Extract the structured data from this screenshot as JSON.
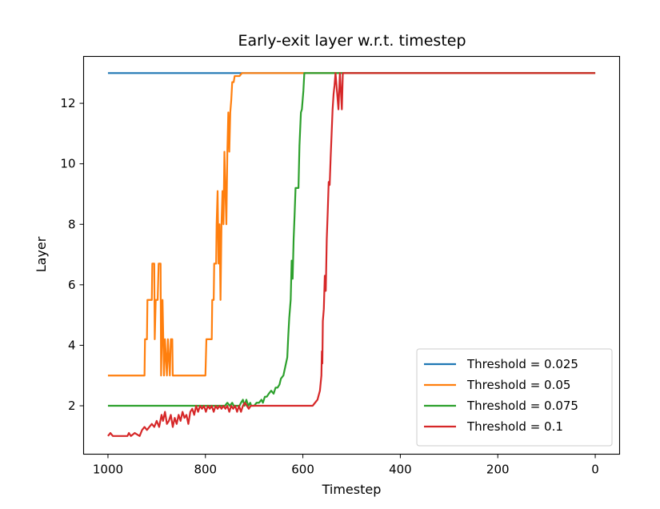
{
  "chart_data": {
    "type": "line",
    "title": "Early-exit layer w.r.t. timestep",
    "xlabel": "Timestep",
    "ylabel": "Layer",
    "xlim": [
      1050,
      -50
    ],
    "ylim": [
      0.4,
      13.55
    ],
    "x_inverted": true,
    "xticks": [
      1000,
      800,
      600,
      400,
      200,
      0
    ],
    "yticks": [
      2,
      4,
      6,
      8,
      10,
      12
    ],
    "grid": false,
    "legend_position": "lower-right",
    "series": [
      {
        "name": "Threshold = 0.025",
        "color": "#1f77b4",
        "points": [
          [
            1000,
            13
          ],
          [
            0,
            13
          ]
        ]
      },
      {
        "name": "Threshold = 0.05",
        "color": "#ff7f0e",
        "points": [
          [
            1000,
            3
          ],
          [
            925,
            3
          ],
          [
            924,
            4.2
          ],
          [
            920,
            4.2
          ],
          [
            919,
            5.5
          ],
          [
            910,
            5.5
          ],
          [
            909,
            6.7
          ],
          [
            905,
            6.7
          ],
          [
            904,
            4.2
          ],
          [
            902,
            5.5
          ],
          [
            898,
            5.5
          ],
          [
            896,
            6.7
          ],
          [
            892,
            6.7
          ],
          [
            891,
            3
          ],
          [
            888,
            5.5
          ],
          [
            885,
            3
          ],
          [
            883,
            4.2
          ],
          [
            879,
            3
          ],
          [
            877,
            4.2
          ],
          [
            873,
            3
          ],
          [
            871,
            4.2
          ],
          [
            868,
            4.2
          ],
          [
            867,
            3
          ],
          [
            800,
            3
          ],
          [
            798,
            4.2
          ],
          [
            787,
            4.2
          ],
          [
            786,
            5.5
          ],
          [
            783,
            5.5
          ],
          [
            782,
            6.7
          ],
          [
            778,
            6.7
          ],
          [
            777,
            8
          ],
          [
            775,
            9.1
          ],
          [
            773,
            6.7
          ],
          [
            771,
            8
          ],
          [
            769,
            5.5
          ],
          [
            767,
            8
          ],
          [
            765,
            9.1
          ],
          [
            763,
            8
          ],
          [
            761,
            10.4
          ],
          [
            759,
            9.1
          ],
          [
            757,
            8
          ],
          [
            755,
            10.4
          ],
          [
            753,
            11.7
          ],
          [
            751,
            10.4
          ],
          [
            749,
            11.7
          ],
          [
            747,
            12.1
          ],
          [
            745,
            12.7
          ],
          [
            742,
            12.7
          ],
          [
            740,
            12.9
          ],
          [
            730,
            12.9
          ],
          [
            725,
            13
          ],
          [
            0,
            13
          ]
        ]
      },
      {
        "name": "Threshold = 0.075",
        "color": "#2ca02c",
        "points": [
          [
            1000,
            2
          ],
          [
            760,
            2
          ],
          [
            755,
            2.1
          ],
          [
            750,
            2
          ],
          [
            745,
            2.1
          ],
          [
            742,
            2
          ],
          [
            730,
            2
          ],
          [
            727,
            2.1
          ],
          [
            723,
            2.2
          ],
          [
            720,
            2
          ],
          [
            716,
            2.2
          ],
          [
            712,
            2
          ],
          [
            708,
            2.1
          ],
          [
            706,
            2
          ],
          [
            700,
            2
          ],
          [
            695,
            2.1
          ],
          [
            690,
            2.1
          ],
          [
            685,
            2.2
          ],
          [
            682,
            2.1
          ],
          [
            678,
            2.3
          ],
          [
            674,
            2.3
          ],
          [
            670,
            2.4
          ],
          [
            665,
            2.5
          ],
          [
            660,
            2.4
          ],
          [
            656,
            2.6
          ],
          [
            652,
            2.6
          ],
          [
            648,
            2.7
          ],
          [
            645,
            2.9
          ],
          [
            640,
            3
          ],
          [
            636,
            3.3
          ],
          [
            632,
            3.6
          ],
          [
            630,
            4.3
          ],
          [
            628,
            4.9
          ],
          [
            625,
            5.5
          ],
          [
            623,
            6.8
          ],
          [
            621,
            6.2
          ],
          [
            619,
            7.5
          ],
          [
            617,
            8.3
          ],
          [
            615,
            9.2
          ],
          [
            609,
            9.2
          ],
          [
            607,
            10.6
          ],
          [
            604,
            11.7
          ],
          [
            602,
            11.8
          ],
          [
            599,
            12.4
          ],
          [
            597,
            13
          ],
          [
            0,
            13
          ]
        ]
      },
      {
        "name": "Threshold = 0.1",
        "color": "#d62728",
        "points": [
          [
            1000,
            1
          ],
          [
            995,
            1.1
          ],
          [
            990,
            1
          ],
          [
            960,
            1
          ],
          [
            957,
            1.1
          ],
          [
            953,
            1
          ],
          [
            945,
            1.1
          ],
          [
            935,
            1
          ],
          [
            930,
            1.2
          ],
          [
            925,
            1.3
          ],
          [
            920,
            1.2
          ],
          [
            915,
            1.3
          ],
          [
            910,
            1.4
          ],
          [
            905,
            1.3
          ],
          [
            900,
            1.5
          ],
          [
            895,
            1.3
          ],
          [
            890,
            1.7
          ],
          [
            887,
            1.5
          ],
          [
            883,
            1.8
          ],
          [
            879,
            1.4
          ],
          [
            875,
            1.5
          ],
          [
            871,
            1.7
          ],
          [
            867,
            1.3
          ],
          [
            863,
            1.6
          ],
          [
            859,
            1.4
          ],
          [
            855,
            1.7
          ],
          [
            851,
            1.5
          ],
          [
            847,
            1.8
          ],
          [
            843,
            1.6
          ],
          [
            839,
            1.7
          ],
          [
            835,
            1.4
          ],
          [
            831,
            1.8
          ],
          [
            827,
            1.9
          ],
          [
            823,
            1.7
          ],
          [
            819,
            2
          ],
          [
            815,
            1.8
          ],
          [
            811,
            2
          ],
          [
            807,
            1.9
          ],
          [
            803,
            2
          ],
          [
            799,
            1.8
          ],
          [
            795,
            2
          ],
          [
            791,
            1.9
          ],
          [
            787,
            2
          ],
          [
            783,
            1.8
          ],
          [
            779,
            2
          ],
          [
            775,
            1.9
          ],
          [
            771,
            2
          ],
          [
            767,
            1.9
          ],
          [
            763,
            2
          ],
          [
            759,
            1.9
          ],
          [
            755,
            2
          ],
          [
            751,
            1.8
          ],
          [
            747,
            2
          ],
          [
            743,
            1.9
          ],
          [
            739,
            2
          ],
          [
            735,
            1.8
          ],
          [
            731,
            2
          ],
          [
            727,
            1.8
          ],
          [
            723,
            2
          ],
          [
            719,
            2.1
          ],
          [
            715,
            2
          ],
          [
            711,
            1.9
          ],
          [
            707,
            2
          ],
          [
            703,
            2
          ],
          [
            580,
            2
          ],
          [
            575,
            2.1
          ],
          [
            570,
            2.2
          ],
          [
            565,
            2.5
          ],
          [
            562,
            3
          ],
          [
            561,
            3.8
          ],
          [
            560,
            3.4
          ],
          [
            559,
            4.8
          ],
          [
            557,
            5.2
          ],
          [
            555,
            6.3
          ],
          [
            553,
            5.8
          ],
          [
            551,
            7.5
          ],
          [
            549,
            8.4
          ],
          [
            547,
            9.4
          ],
          [
            545,
            9.3
          ],
          [
            543,
            10.2
          ],
          [
            541,
            11
          ],
          [
            539,
            11.8
          ],
          [
            537,
            12.3
          ],
          [
            535,
            12.6
          ],
          [
            533,
            13
          ],
          [
            530,
            12.4
          ],
          [
            527,
            11.8
          ],
          [
            524,
            13
          ],
          [
            522,
            12.4
          ],
          [
            520,
            11.8
          ],
          [
            518,
            13
          ],
          [
            0,
            13
          ]
        ]
      }
    ]
  }
}
